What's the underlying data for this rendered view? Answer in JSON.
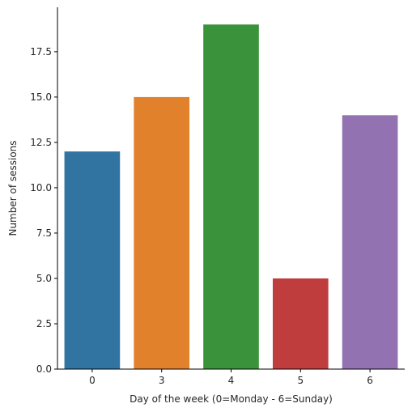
{
  "chart_data": {
    "type": "bar",
    "categories": [
      "0",
      "3",
      "4",
      "5",
      "6"
    ],
    "values": [
      12,
      15,
      19,
      5,
      14
    ],
    "colors": [
      "#3274a1",
      "#e1812c",
      "#3a923a",
      "#c03d3e",
      "#9372b2"
    ],
    "title": "",
    "xlabel": "Day of the week (0=Monday - 6=Sunday)",
    "ylabel": "Number of sessions",
    "ylim": [
      0,
      19.95
    ],
    "yticks": [
      0.0,
      2.5,
      5.0,
      7.5,
      10.0,
      12.5,
      15.0,
      17.5
    ],
    "ytick_labels": [
      "0.0",
      "2.5",
      "5.0",
      "7.5",
      "10.0",
      "12.5",
      "15.0",
      "17.5"
    ],
    "grid": false,
    "spines": [
      "left",
      "bottom"
    ]
  }
}
